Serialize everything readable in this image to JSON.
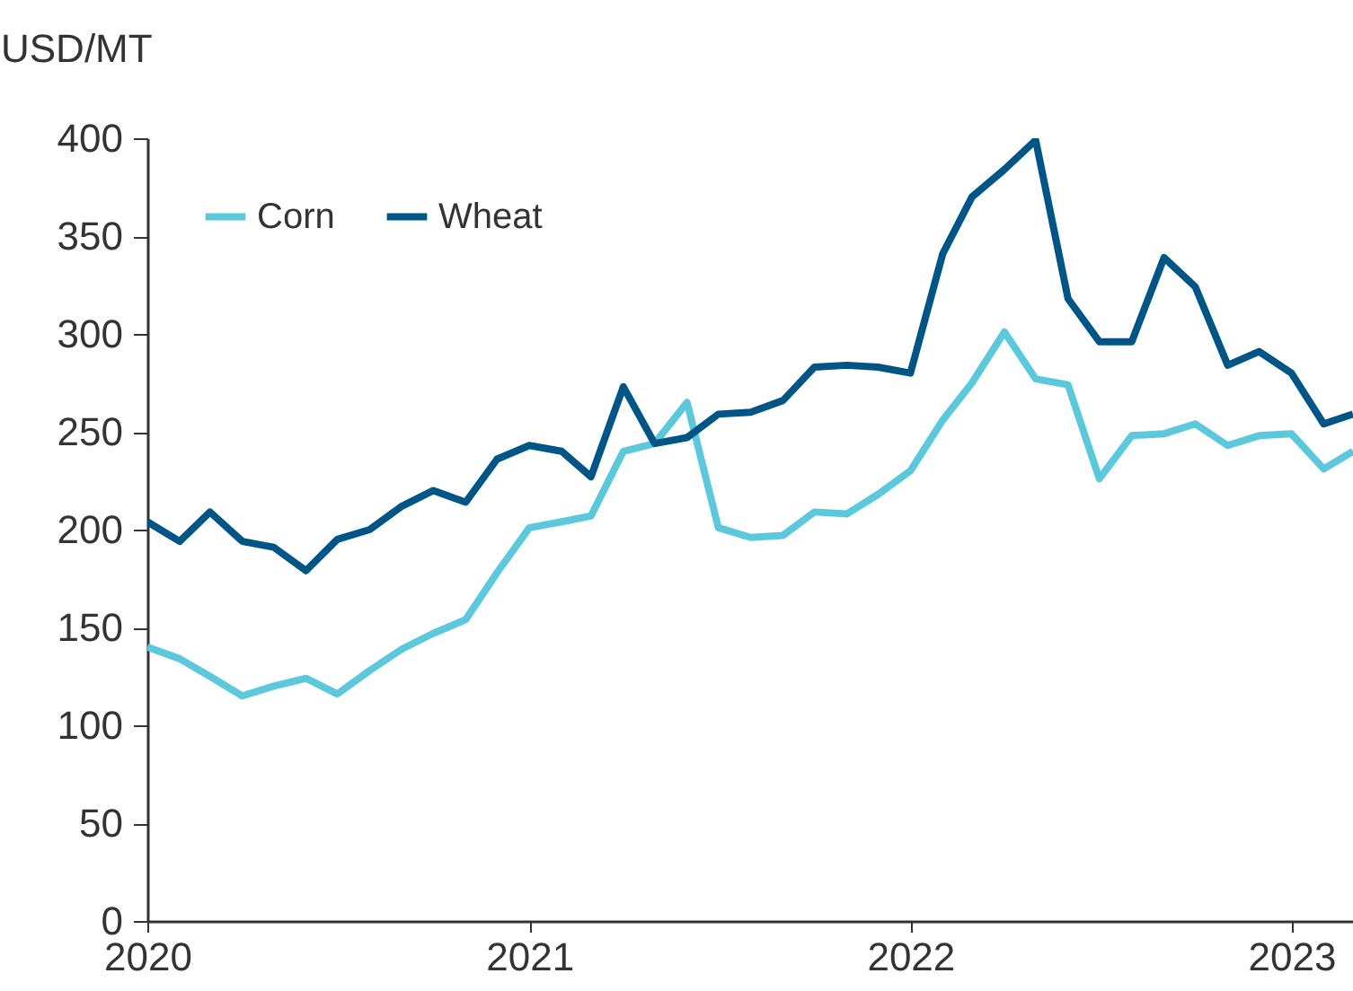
{
  "chart_data": {
    "type": "line",
    "ylabel": "USD/MT",
    "x": [
      "2020-01",
      "2020-02",
      "2020-03",
      "2020-04",
      "2020-05",
      "2020-06",
      "2020-07",
      "2020-08",
      "2020-09",
      "2020-10",
      "2020-11",
      "2020-12",
      "2021-01",
      "2021-02",
      "2021-03",
      "2021-04",
      "2021-05",
      "2021-06",
      "2021-07",
      "2021-08",
      "2021-09",
      "2021-10",
      "2021-11",
      "2021-12",
      "2022-01",
      "2022-02",
      "2022-03",
      "2022-04",
      "2022-05",
      "2022-06",
      "2022-07",
      "2022-08",
      "2022-09",
      "2022-10",
      "2022-11",
      "2022-12",
      "2023-01",
      "2023-02",
      "2023-03"
    ],
    "series": [
      {
        "name": "Corn",
        "color": "#5bc8dc",
        "values": [
          140,
          134,
          125,
          115,
          120,
          124,
          116,
          128,
          139,
          147,
          154,
          178,
          201,
          204,
          207,
          240,
          244,
          265,
          201,
          196,
          197,
          209,
          208,
          218,
          230,
          256,
          275,
          301,
          277,
          274,
          226,
          248,
          249,
          254,
          243,
          248,
          249,
          231,
          240
        ]
      },
      {
        "name": "Wheat",
        "color": "#005587",
        "values": [
          204,
          194,
          209,
          194,
          191,
          179,
          195,
          200,
          212,
          220,
          214,
          236,
          243,
          240,
          227,
          273,
          244,
          247,
          259,
          260,
          266,
          283,
          284,
          283,
          280,
          341,
          370,
          384,
          399,
          318,
          296,
          296,
          339,
          324,
          284,
          291,
          280,
          254,
          259
        ]
      }
    ],
    "xlim": [
      "2020-01",
      "2023-03"
    ],
    "xticks": [
      "2020",
      "2021",
      "2022",
      "2023"
    ],
    "ylim": [
      0,
      400
    ],
    "yticks": [
      0,
      50,
      100,
      150,
      200,
      250,
      300,
      350,
      400
    ],
    "grid": false,
    "legend": "top left",
    "marker": "none",
    "line_style": "solid"
  }
}
